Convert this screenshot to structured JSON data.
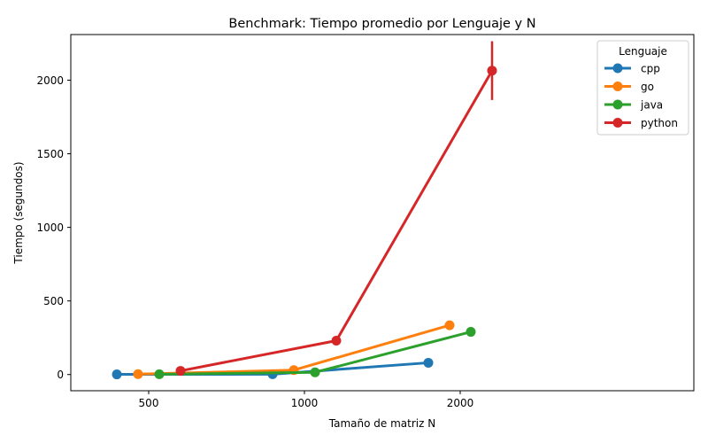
{
  "chart_data": {
    "type": "line",
    "title": "Benchmark: Tiempo promedio por Lenguaje y N",
    "xlabel": "Tamaño de matriz N",
    "ylabel": "Tiempo (segundos)",
    "categories": [
      "500",
      "1000",
      "2000"
    ],
    "yticks": [
      0,
      500,
      1000,
      1500,
      2000
    ],
    "ylim": [
      -110,
      2310
    ],
    "grid": false,
    "legend": {
      "title": "Lenguaje",
      "position": "upper-right"
    },
    "series": [
      {
        "name": "cpp",
        "color": "#1f77b4",
        "values": [
          1,
          2,
          80
        ],
        "error": [
          0,
          0,
          0
        ]
      },
      {
        "name": "go",
        "color": "#ff7f0e",
        "values": [
          3,
          30,
          335
        ],
        "error": [
          0,
          0,
          0
        ]
      },
      {
        "name": "java",
        "color": "#2ca02c",
        "values": [
          2,
          15,
          290
        ],
        "error": [
          0,
          0,
          0
        ]
      },
      {
        "name": "python",
        "color": "#d62728",
        "values": [
          25,
          230,
          2065
        ],
        "error": [
          0,
          0,
          200
        ]
      }
    ]
  }
}
